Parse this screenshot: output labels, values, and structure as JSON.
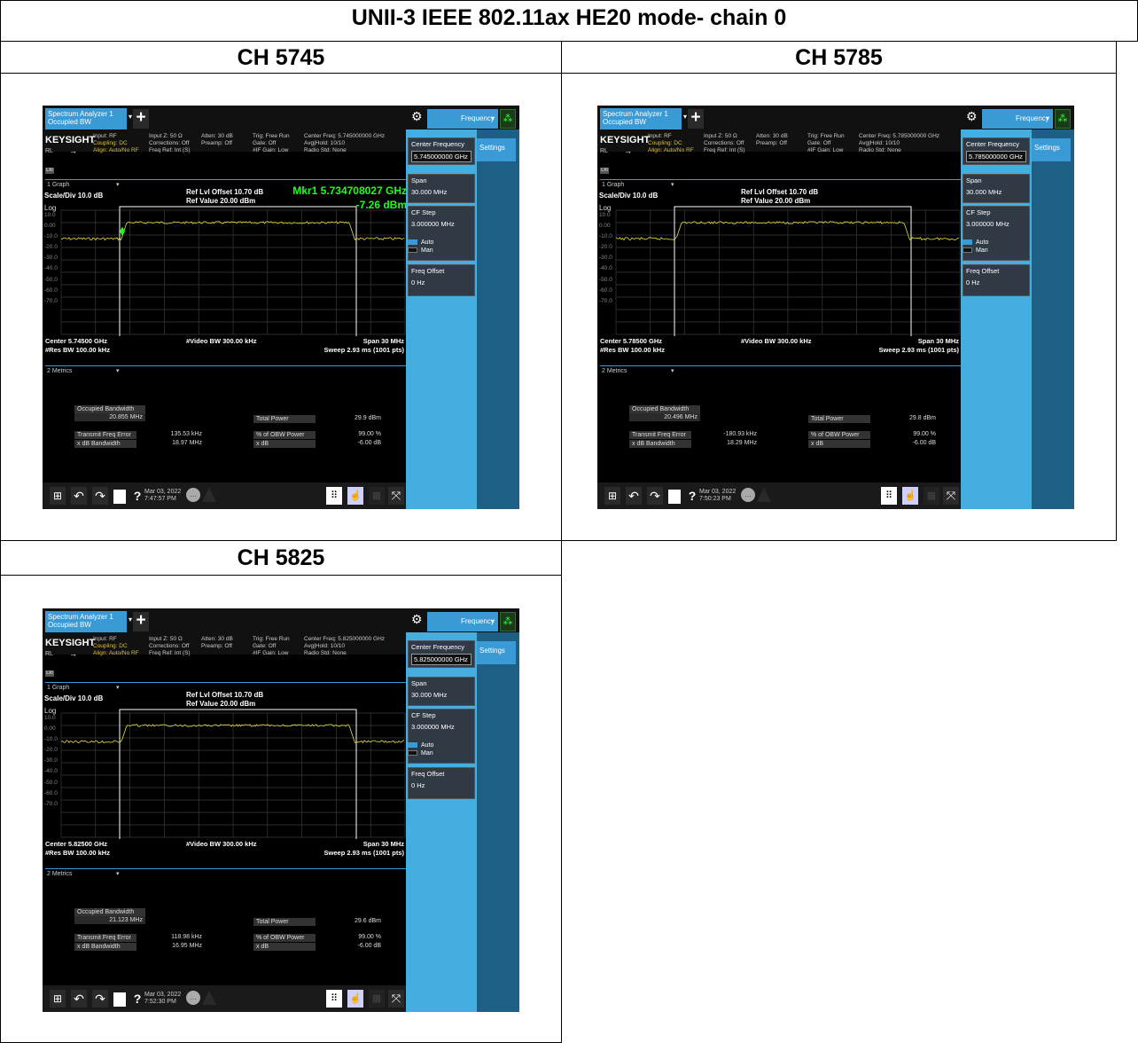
{
  "title": "UNII-3 IEEE 802.11ax HE20 mode- chain 0",
  "panels": [
    {
      "header": "CH 5745",
      "tab_line1": "Spectrum Analyzer 1",
      "tab_line2": "Occupied BW",
      "plus": "+",
      "gear": "⚙",
      "freq_tab": "Frequency",
      "spinner": "⁂",
      "brand": "KEYSIGHT",
      "rl": "RL",
      "arrow": "→",
      "input_col1": [
        "Input: RF",
        "Coupling: DC",
        "Align: Auto/No RF"
      ],
      "input_col2": [
        "Input Z: 50 Ω",
        "Corrections: Off",
        "Freq Ref: Int (S)"
      ],
      "input_col3": [
        "Atten: 30 dB",
        "Preamp: Off"
      ],
      "input_col4": [
        "Trig: Free Run",
        "Gate: Off",
        "#IF Gain: Low"
      ],
      "input_col5": [
        "Center Freq: 5.745000000 GHz",
        "Avg|Hold: 10/10",
        "Radio Std: None"
      ],
      "lxi": "LXI",
      "graph_sel": "1 Graph",
      "caret": "▾",
      "scale": "Scale/Div 10.0 dB",
      "log": "Log",
      "ref_offset": "Ref Lvl Offset 10.70 dB",
      "ref_value": "Ref Value 20.00 dBm",
      "marker_freq": "Mkr1  5.734708027 GHz",
      "marker_level": "-7.26 dBm",
      "yticks": [
        "10.0",
        "0.00",
        "-10.0",
        "-20.0",
        "-30.0",
        "-40.0",
        "-50.0",
        "-60.0",
        "-70.0"
      ],
      "center": "Center 5.74500 GHz",
      "rbw": "#Res BW 100.00 kHz",
      "vbw": "#Video BW 300.00 kHz",
      "span": "Span 30 MHz",
      "sweep": "Sweep 2.93 ms (1001 pts)",
      "metrics_sel": "2 Metrics",
      "obw_label": "Occupied Bandwidth",
      "obw_value": "20.855 MHz",
      "tfe_label": "Transmit Freq Error",
      "tfe_value": "135.53 kHz",
      "xdb_bw_label": "x dB Bandwidth",
      "xdb_bw_value": "18.97 MHz",
      "tp_label": "Total Power",
      "tp_value": "29.9 dBm",
      "pct_label": "% of OBW Power",
      "pct_value": "99.00 %",
      "xdb_label": "x dB",
      "xdb_value": "-6.00 dB",
      "cf_label": "Center Frequency",
      "cf_value": "5.745000000 GHz",
      "settings": "Settings",
      "span_label": "Span",
      "span_value": "30.000 MHz",
      "cfstep_label": "CF Step",
      "cfstep_value": "3.000000 MHz",
      "auto": "Auto",
      "man": "Man",
      "foffset_label": "Freq Offset",
      "foffset_value": "0 Hz",
      "date": "Mar 03, 2022",
      "time": "7:47:57 PM",
      "help": "?",
      "has_marker": true
    },
    {
      "header": "CH 5785",
      "tab_line1": "Spectrum Analyzer 1",
      "tab_line2": "Occupied BW",
      "plus": "+",
      "gear": "⚙",
      "freq_tab": "Frequency",
      "spinner": "⁂",
      "brand": "KEYSIGHT",
      "rl": "RL",
      "arrow": "→",
      "input_col1": [
        "Input: RF",
        "Coupling: DC",
        "Align: Auto/No RF"
      ],
      "input_col2": [
        "Input Z: 50 Ω",
        "Corrections: Off",
        "Freq Ref: Int (S)"
      ],
      "input_col3": [
        "Atten: 30 dB",
        "Preamp: Off"
      ],
      "input_col4": [
        "Trig: Free Run",
        "Gate: Off",
        "#IF Gain: Low"
      ],
      "input_col5": [
        "Center Freq: 5.785000000 GHz",
        "Avg|Hold: 10/10",
        "Radio Std: None"
      ],
      "lxi": "LXI",
      "graph_sel": "1 Graph",
      "caret": "▾",
      "scale": "Scale/Div 10.0 dB",
      "log": "Log",
      "ref_offset": "Ref Lvl Offset 10.70 dB",
      "ref_value": "Ref Value 20.00 dBm",
      "marker_freq": "",
      "marker_level": "",
      "yticks": [
        "10.0",
        "0.00",
        "-10.0",
        "-20.0",
        "-30.0",
        "-40.0",
        "-50.0",
        "-60.0",
        "-70.0"
      ],
      "center": "Center 5.78500 GHz",
      "rbw": "#Res BW 100.00 kHz",
      "vbw": "#Video BW 300.00 kHz",
      "span": "Span 30 MHz",
      "sweep": "Sweep 2.93 ms (1001 pts)",
      "metrics_sel": "2 Metrics",
      "obw_label": "Occupied Bandwidth",
      "obw_value": "20.496 MHz",
      "tfe_label": "Transmit Freq Error",
      "tfe_value": "-180.93 kHz",
      "xdb_bw_label": "x dB Bandwidth",
      "xdb_bw_value": "18.29 MHz",
      "tp_label": "Total Power",
      "tp_value": "29.8 dBm",
      "pct_label": "% of OBW Power",
      "pct_value": "99.00 %",
      "xdb_label": "x dB",
      "xdb_value": "-6.00 dB",
      "cf_label": "Center Frequency",
      "cf_value": "5.785000000 GHz",
      "settings": "Settings",
      "span_label": "Span",
      "span_value": "30.000 MHz",
      "cfstep_label": "CF Step",
      "cfstep_value": "3.000000 MHz",
      "auto": "Auto",
      "man": "Man",
      "foffset_label": "Freq Offset",
      "foffset_value": "0 Hz",
      "date": "Mar 03, 2022",
      "time": "7:50:23 PM",
      "help": "?",
      "has_marker": false
    },
    {
      "header": "CH 5825",
      "tab_line1": "Spectrum Analyzer 1",
      "tab_line2": "Occupied BW",
      "plus": "+",
      "gear": "⚙",
      "freq_tab": "Frequency",
      "spinner": "⁂",
      "brand": "KEYSIGHT",
      "rl": "RL",
      "arrow": "→",
      "input_col1": [
        "Input: RF",
        "Coupling: DC",
        "Align: Auto/No RF"
      ],
      "input_col2": [
        "Input Z: 50 Ω",
        "Corrections: Off",
        "Freq Ref: Int (S)"
      ],
      "input_col3": [
        "Atten: 30 dB",
        "Preamp: Off"
      ],
      "input_col4": [
        "Trig: Free Run",
        "Gate: Off",
        "#IF Gain: Low"
      ],
      "input_col5": [
        "Center Freq: 5.825000000 GHz",
        "Avg|Hold: 10/10",
        "Radio Std: None"
      ],
      "lxi": "LXI",
      "graph_sel": "1 Graph",
      "caret": "▾",
      "scale": "Scale/Div 10.0 dB",
      "log": "Log",
      "ref_offset": "Ref Lvl Offset 10.70 dB",
      "ref_value": "Ref Value 20.00 dBm",
      "marker_freq": "",
      "marker_level": "",
      "yticks": [
        "10.0",
        "0.00",
        "-10.0",
        "-20.0",
        "-30.0",
        "-40.0",
        "-50.0",
        "-60.0",
        "-70.0"
      ],
      "center": "Center 5.82500 GHz",
      "rbw": "#Res BW 100.00 kHz",
      "vbw": "#Video BW 300.00 kHz",
      "span": "Span 30 MHz",
      "sweep": "Sweep 2.93 ms (1001 pts)",
      "metrics_sel": "2 Metrics",
      "obw_label": "Occupied Bandwidth",
      "obw_value": "21.123 MHz",
      "tfe_label": "Transmit Freq Error",
      "tfe_value": "118.98 kHz",
      "xdb_bw_label": "x dB Bandwidth",
      "xdb_bw_value": "16.95 MHz",
      "tp_label": "Total Power",
      "tp_value": "29.6 dBm",
      "pct_label": "% of OBW Power",
      "pct_value": "99.00 %",
      "xdb_label": "x dB",
      "xdb_value": "-6.00 dB",
      "cf_label": "Center Frequency",
      "cf_value": "5.825000000 GHz",
      "settings": "Settings",
      "span_label": "Span",
      "span_value": "30.000 MHz",
      "cfstep_label": "CF Step",
      "cfstep_value": "3.000000 MHz",
      "auto": "Auto",
      "man": "Man",
      "foffset_label": "Freq Offset",
      "foffset_value": "0 Hz",
      "date": "Mar 03, 2022",
      "time": "7:52:30 PM",
      "help": "?",
      "has_marker": false
    }
  ]
}
